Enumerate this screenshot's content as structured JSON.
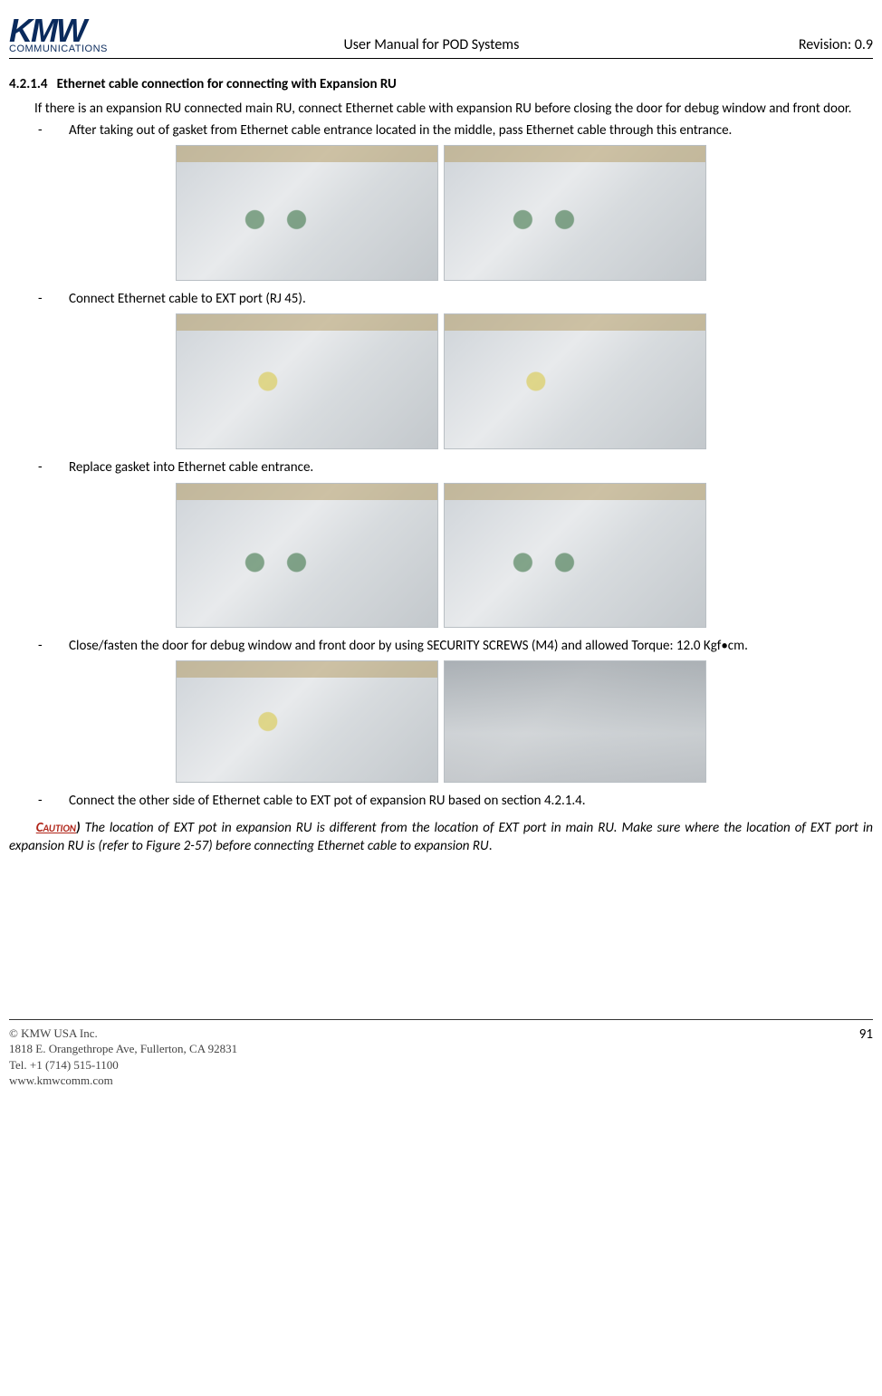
{
  "header": {
    "logo_top": "KMW",
    "logo_sub": "COMMUNICATIONS",
    "title": "User Manual for POD Systems",
    "revision": "Revision: 0.9"
  },
  "section": {
    "number": "4.2.1.4",
    "title": "Ethernet cable connection for connecting with Expansion RU"
  },
  "intro": "If there is an expansion RU connected main RU, connect Ethernet cable with expansion RU before closing the door for debug window and front door.",
  "bullets": {
    "b1": "After taking out of gasket from Ethernet cable entrance located in the middle, pass Ethernet cable through this entrance.",
    "b2": "Connect Ethernet cable to EXT port (RJ 45).",
    "b3": "Replace gasket into Ethernet cable entrance.",
    "b4": "Close/fasten the door for debug window and front door by using SECURITY SCREWS (M4) and allowed Torque: 12.0 Kgf•cm.",
    "b5": "Connect the other side of Ethernet cable to EXT pot of expansion RU based on section 4.2.1.4."
  },
  "caution": {
    "label": "Caution",
    "paren": ")",
    "text": " The location of EXT pot in expansion RU is different from the location of EXT port in main RU. Make sure where the location of EXT port in expansion RU is (refer to Figure 2-57) before connecting Ethernet cable to expansion RU",
    "period": "."
  },
  "footer": {
    "copyright": "© KMW USA Inc.",
    "address": "1818 E. Orangethrope Ave, Fullerton, CA 92831",
    "tel": "Tel. +1 (714) 515-1100",
    "web": "www.kmwcomm.com",
    "page": "91"
  }
}
